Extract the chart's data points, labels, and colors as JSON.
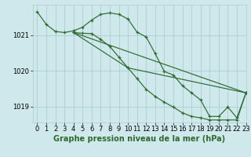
{
  "background_color": "#cfe8ec",
  "grid_color": "#aacdd4",
  "line_color": "#2d6a2d",
  "marker_color": "#2d6a2d",
  "title": "Graphe pression niveau de la mer (hPa)",
  "tick_fontsize": 6,
  "title_fontsize": 7,
  "xlim": [
    -0.5,
    23
  ],
  "ylim": [
    1018.55,
    1021.85
  ],
  "yticks": [
    1019,
    1020,
    1021
  ],
  "xticks": [
    0,
    1,
    2,
    3,
    4,
    5,
    6,
    7,
    8,
    9,
    10,
    11,
    12,
    13,
    14,
    15,
    16,
    17,
    18,
    19,
    20,
    21,
    22,
    23
  ],
  "series": [
    {
      "x": [
        0,
        1,
        2,
        3,
        4,
        5,
        6,
        7,
        8,
        9,
        10,
        11,
        12,
        13,
        14,
        15,
        16,
        17,
        18,
        19,
        20,
        21,
        22,
        23
      ],
      "y": [
        1021.65,
        1021.3,
        1021.1,
        1021.07,
        1021.12,
        1021.22,
        1021.42,
        1021.58,
        1021.62,
        1021.58,
        1021.45,
        1021.08,
        1020.95,
        1020.48,
        1019.98,
        1019.88,
        1019.58,
        1019.38,
        1019.18,
        1018.72,
        1018.72,
        1018.98,
        1018.68,
        1019.38
      ]
    },
    {
      "x": [
        4,
        5,
        6,
        7,
        8,
        9,
        10,
        11,
        12,
        13,
        14,
        15,
        16,
        17,
        18,
        19,
        20,
        21,
        22,
        23
      ],
      "y": [
        1021.07,
        1021.05,
        1021.04,
        1020.88,
        1020.68,
        1020.38,
        1020.08,
        1019.78,
        1019.48,
        1019.28,
        1019.12,
        1018.98,
        1018.82,
        1018.72,
        1018.68,
        1018.62,
        1018.62,
        1018.62,
        1018.62,
        1019.38
      ]
    },
    {
      "x": [
        4,
        23
      ],
      "y": [
        1021.07,
        1019.38
      ]
    },
    {
      "x": [
        4,
        10,
        23
      ],
      "y": [
        1021.07,
        1020.08,
        1019.38
      ]
    }
  ]
}
